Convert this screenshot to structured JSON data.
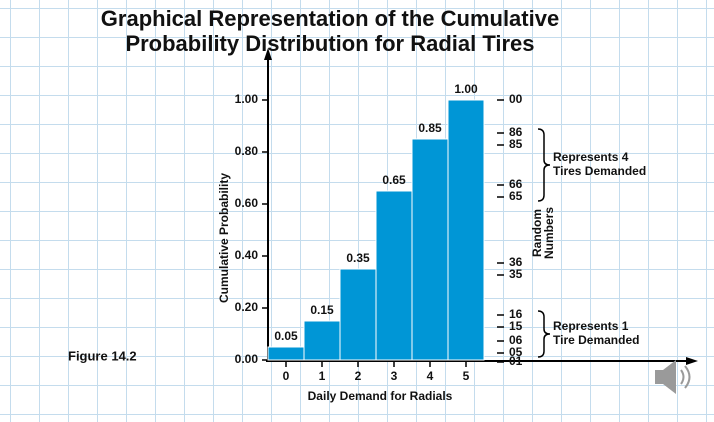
{
  "chart_data": {
    "type": "bar",
    "title": "Graphical Representation of the Cumulative Probability Distribution for Radial Tires",
    "figure_label": "Figure 14.2",
    "x_label": "Daily Demand for Radials",
    "y_label": "Cumulative Probability",
    "categories": [
      "0",
      "1",
      "2",
      "3",
      "4",
      "5"
    ],
    "values": [
      0.05,
      0.15,
      0.35,
      0.65,
      0.85,
      1.0
    ],
    "value_labels": [
      "0.05",
      "0.15",
      "0.35",
      "0.65",
      "0.85",
      "1.00"
    ],
    "color": "#0096d6",
    "ylim": [
      0,
      1
    ],
    "yticks": [
      {
        "value": 0,
        "label": "0.00"
      },
      {
        "value": 0.2,
        "label": "0.20"
      },
      {
        "value": 0.4,
        "label": "0.40"
      },
      {
        "value": 0.6,
        "label": "0.60"
      },
      {
        "value": 0.8,
        "label": "0.80"
      },
      {
        "value": 1,
        "label": "1.00"
      }
    ],
    "random_numbers_label": [
      "Random",
      "Numbers"
    ],
    "random_numbers": [
      {
        "value": 1,
        "labels": [
          "00"
        ]
      },
      {
        "value": 0.85,
        "labels": [
          "86",
          "85"
        ]
      },
      {
        "value": 0.65,
        "labels": [
          "66",
          "65"
        ]
      },
      {
        "value": 0.35,
        "labels": [
          "36",
          "35"
        ]
      },
      {
        "value": 0.15,
        "labels": [
          "16",
          "15"
        ]
      },
      {
        "value": 0.05,
        "labels": [
          "06",
          "05"
        ]
      },
      {
        "value": 0,
        "labels": [
          "01"
        ]
      }
    ],
    "braces": [
      {
        "from": 0.65,
        "to": 0.85,
        "text": [
          "Represents 4",
          "Tires Demanded"
        ]
      },
      {
        "from": 0.05,
        "to": 0.15,
        "text": [
          "Represents 1",
          "Tire Demanded"
        ]
      }
    ]
  }
}
